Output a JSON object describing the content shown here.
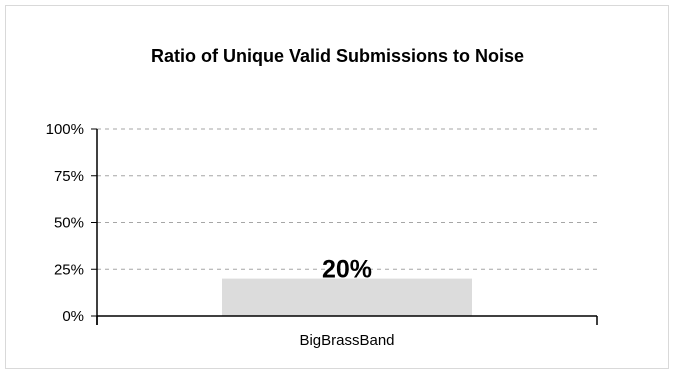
{
  "chart_data": {
    "type": "bar",
    "title": "Ratio of Unique Valid Submissions to Noise",
    "categories": [
      "BigBrassBand"
    ],
    "values": [
      0.2
    ],
    "data_labels": [
      "20%"
    ],
    "ylim": [
      0,
      1
    ],
    "yticks": [
      0,
      0.25,
      0.5,
      0.75,
      1
    ],
    "ytick_labels": [
      "0%",
      "25%",
      "50%",
      "75%",
      "100%"
    ],
    "grid": true,
    "legend": "none",
    "colors": {
      "bar": "#dcdcdc",
      "grid": "#a6a6a6",
      "axis": "#000000"
    }
  }
}
